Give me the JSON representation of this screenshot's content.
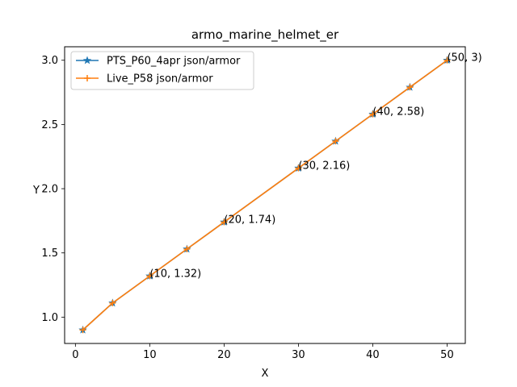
{
  "chart_data": {
    "type": "line",
    "title": "armo_marine_helmet_er",
    "xlabel": "X",
    "ylabel": "Y",
    "xlim": [
      -1.45,
      52.45
    ],
    "ylim": [
      0.795,
      3.105
    ],
    "xticks": [
      0,
      10,
      20,
      30,
      40,
      50
    ],
    "yticks": [
      1.0,
      1.5,
      2.0,
      2.5,
      3.0
    ],
    "xtick_labels": [
      "0",
      "10",
      "20",
      "30",
      "40",
      "50"
    ],
    "ytick_labels": [
      "1.0",
      "1.5",
      "2.0",
      "2.5",
      "3.0"
    ],
    "grid": false,
    "legend_position": "upper left",
    "series": [
      {
        "name": "PTS_P60_4apr json/armor",
        "color": "#1f77b4",
        "marker": "star",
        "x": [
          1,
          5,
          10,
          15,
          20,
          30,
          35,
          40,
          45,
          50
        ],
        "y": [
          0.9,
          1.11,
          1.32,
          1.53,
          1.74,
          2.16,
          2.37,
          2.58,
          2.79,
          3.0
        ]
      },
      {
        "name": "Live_P58 json/armor",
        "color": "#ff7f0e",
        "marker": "plus",
        "x": [
          1,
          5,
          10,
          15,
          20,
          30,
          35,
          40,
          45,
          50
        ],
        "y": [
          0.9,
          1.11,
          1.32,
          1.53,
          1.74,
          2.16,
          2.37,
          2.58,
          2.79,
          3.0
        ]
      }
    ],
    "annotations": [
      {
        "x": 10,
        "y": 1.32,
        "text": "(10, 1.32)"
      },
      {
        "x": 20,
        "y": 1.74,
        "text": "(20, 1.74)"
      },
      {
        "x": 30,
        "y": 2.16,
        "text": "(30, 2.16)"
      },
      {
        "x": 40,
        "y": 2.58,
        "text": "(40, 2.58)"
      },
      {
        "x": 50,
        "y": 3.0,
        "text": "(50, 3)"
      }
    ]
  }
}
